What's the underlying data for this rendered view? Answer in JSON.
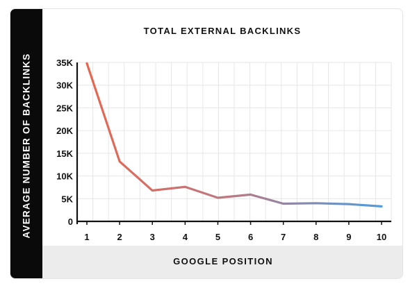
{
  "chart_data": {
    "type": "line",
    "title": "TOTAL EXTERNAL BACKLINKS",
    "xlabel": "GOOGLE POSITION",
    "ylabel": "AVERAGE NUMBER OF BACKLINKS",
    "x": [
      1,
      2,
      3,
      4,
      5,
      6,
      7,
      8,
      9,
      10
    ],
    "x_tick_labels": [
      "1",
      "2",
      "3",
      "4",
      "5",
      "6",
      "7",
      "8",
      "9",
      "10"
    ],
    "series": [
      {
        "values": [
          34800,
          13200,
          6800,
          7600,
          5200,
          5900,
          3900,
          4000,
          3800,
          3300
        ]
      }
    ],
    "ylim": [
      0,
      35000
    ],
    "y_ticks": [
      0,
      5000,
      10000,
      15000,
      20000,
      25000,
      30000,
      35000
    ],
    "y_tick_labels": [
      "0",
      "5K",
      "10K",
      "15K",
      "20K",
      "25K",
      "30K",
      "35K"
    ],
    "grid": true,
    "line_gradient": [
      "#e8664f",
      "#b97a85",
      "#4f9cde"
    ]
  }
}
